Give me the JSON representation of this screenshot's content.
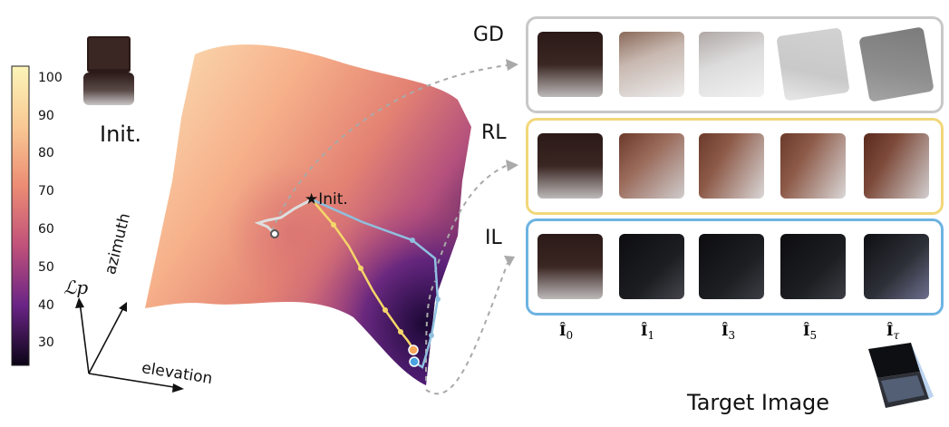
{
  "colorbar": {
    "ticks": [
      "100",
      "90",
      "80",
      "70",
      "60",
      "50",
      "40",
      "30"
    ],
    "gradient_top": "#fcf5b8",
    "gradient_bottom": "#0b0416"
  },
  "init_label": "Init.",
  "init_marker_label": "★Init.",
  "axes": {
    "loss_label": "ℒp",
    "azimuth_label": "azimuth",
    "elevation_label": "elevation"
  },
  "rows": [
    {
      "label": "GD",
      "border_color": "#c8c8c8"
    },
    {
      "label": "RL",
      "border_color": "#f2d77a"
    },
    {
      "label": "IL",
      "border_color": "#6db3e2"
    }
  ],
  "column_labels": [
    "Î0",
    "Î1",
    "Î3",
    "Î5",
    "Îτ"
  ],
  "column_labels_display": [
    {
      "main": "Î",
      "sub": "0"
    },
    {
      "main": "Î",
      "sub": "1"
    },
    {
      "main": "Î",
      "sub": "3"
    },
    {
      "main": "Î",
      "sub": "5"
    },
    {
      "main": "Î",
      "sub": "τ"
    }
  ],
  "target_label": "Target Image",
  "path_colors": {
    "gd": "#d9d9d9",
    "rl": "#f5d66a",
    "il": "#8fc0df"
  }
}
